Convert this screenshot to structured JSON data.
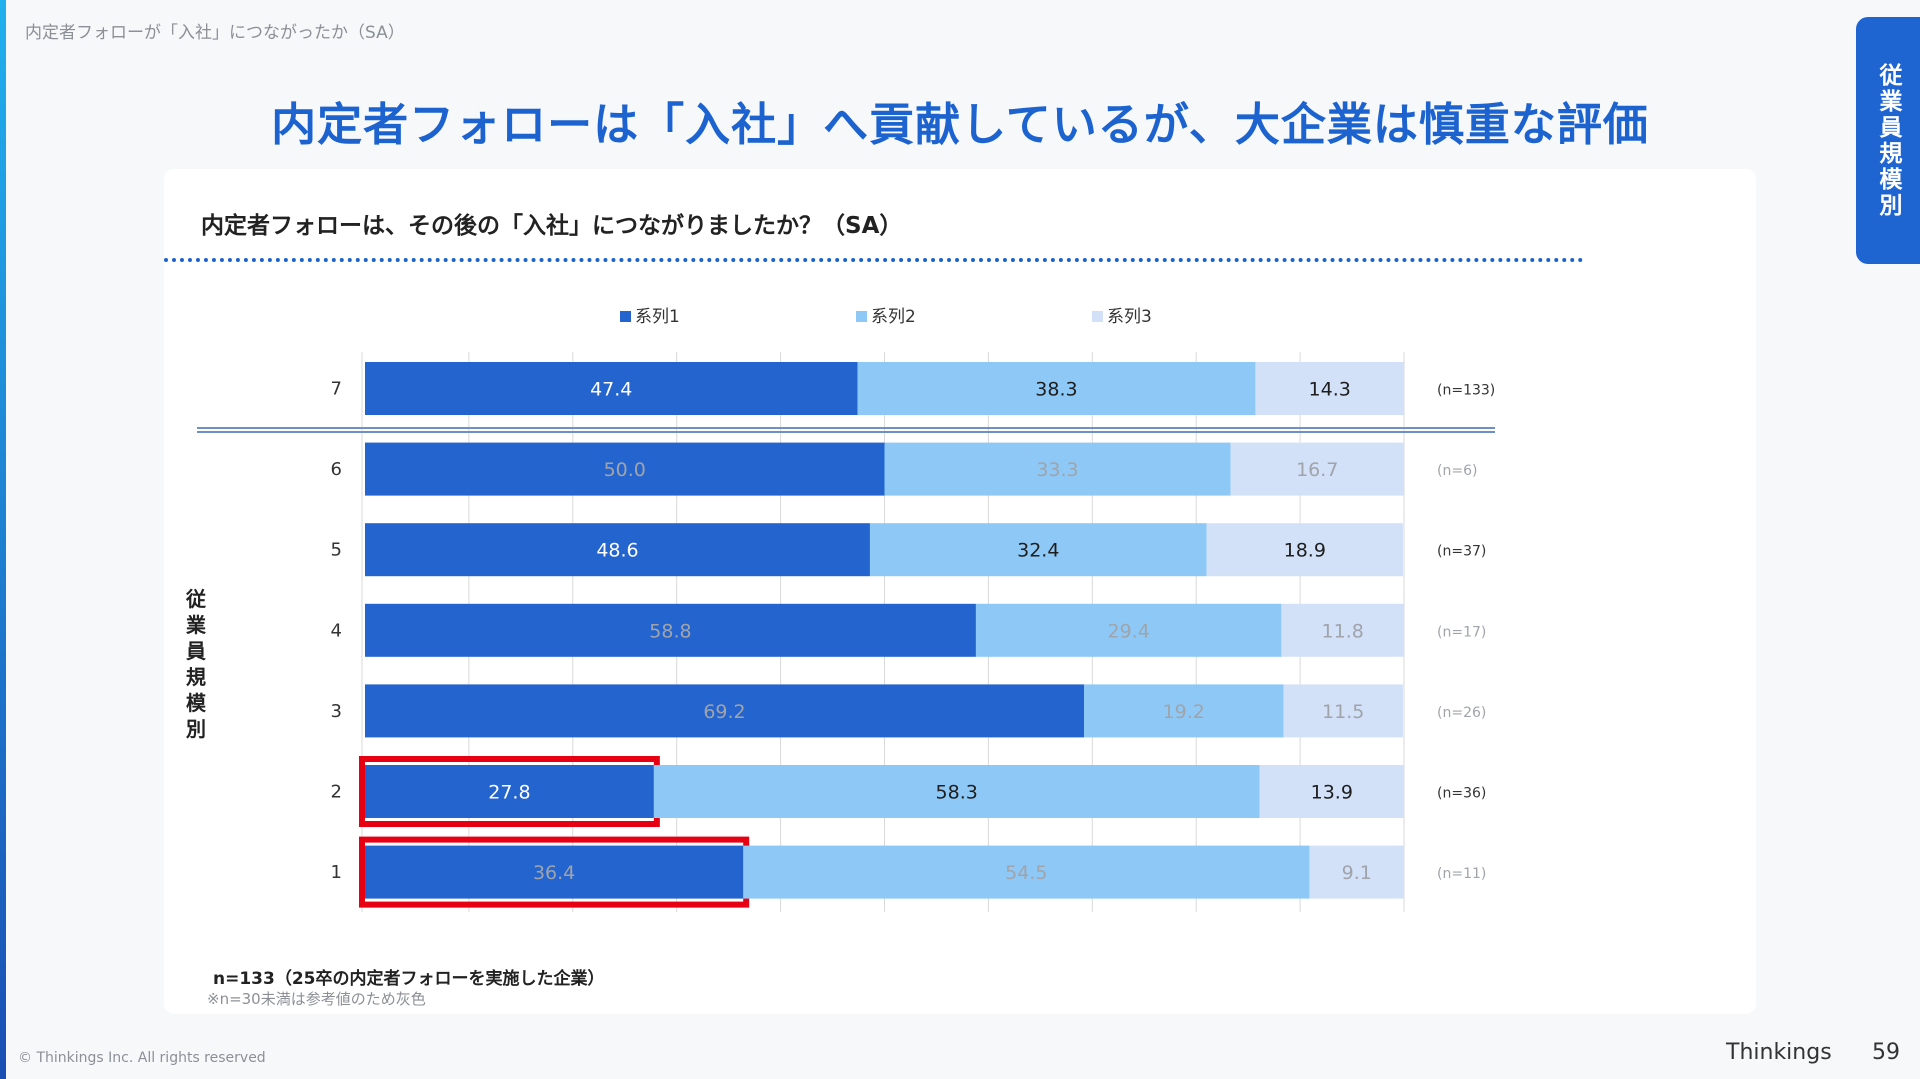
{
  "breadcrumb": "内定者フォローが「入社」につながったか（SA）",
  "title": "内定者フォローは「入社」へ貢献しているが、大企業は慎重な評価",
  "side_tab": "従業員規模別",
  "question": "内定者フォローは、その後の「入社」につながりましたか？（SA）",
  "footnote_n": "n=133（25卒の内定者フォローを実施した企業）",
  "footnote_note": "※n=30未満は参考値のため灰色",
  "copyright": "© Thinkings Inc. All rights reserved",
  "brand": "Thinkings",
  "page_number": "59",
  "colors": {
    "series1": "#2464cf",
    "series2": "#8ec8f6",
    "series3": "#d2e1f8",
    "highlight": "#e60012",
    "reference_text": "#a0a4aa"
  },
  "chart_data": {
    "type": "bar",
    "orientation": "horizontal",
    "stacked": true,
    "percent_scale": true,
    "xlim": [
      0,
      100
    ],
    "ylabel": "従業員規模別",
    "legend_position": "top",
    "categories": [
      "7",
      "6",
      "5",
      "4",
      "3",
      "2",
      "1"
    ],
    "sample_sizes": [
      "(n=133)",
      "(n=6)",
      "(n=37)",
      "(n=17)",
      "(n=26)",
      "(n=36)",
      "(n=11)"
    ],
    "reference_value": [
      false,
      true,
      false,
      true,
      true,
      false,
      true
    ],
    "highlighted_series1": [
      false,
      false,
      false,
      false,
      false,
      true,
      true
    ],
    "series": [
      {
        "name": "系列1",
        "values": [
          47.4,
          50.0,
          48.6,
          58.8,
          69.2,
          27.8,
          36.4
        ]
      },
      {
        "name": "系列2",
        "values": [
          38.3,
          33.3,
          32.4,
          29.4,
          19.2,
          58.3,
          54.5
        ]
      },
      {
        "name": "系列3",
        "values": [
          14.3,
          16.7,
          18.9,
          11.8,
          11.5,
          13.9,
          9.1
        ]
      }
    ]
  }
}
